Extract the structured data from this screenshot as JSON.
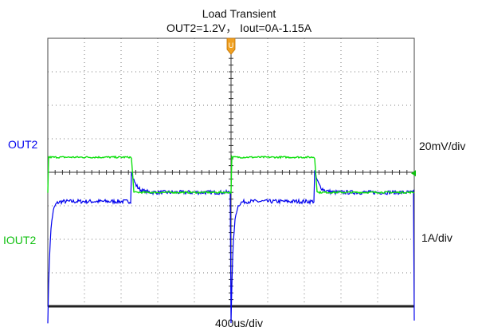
{
  "chart_data": {
    "type": "line",
    "title": "Load Transient",
    "subtitle": "OUT2=1.2V， Iout=0A-1.15A",
    "grid": true,
    "x_divisions": 10,
    "y_divisions": 8,
    "trigger_marker": "U",
    "x_scale_label": "400us/div",
    "series": [
      {
        "name": "OUT2",
        "scale_label": "20mV/div",
        "color": "#0000ee",
        "baseline_div": 3.15,
        "high_level_div": 1.85,
        "low_level_div": 1.0,
        "overshoot_div": 4.05,
        "undershoot_div": -0.45
      },
      {
        "name": "IOUT2",
        "scale_label": "1A/div",
        "color": "#10e010",
        "baseline_div": -0.35,
        "high_level_div": 4.45,
        "low_level_div": 3.4
      }
    ]
  }
}
